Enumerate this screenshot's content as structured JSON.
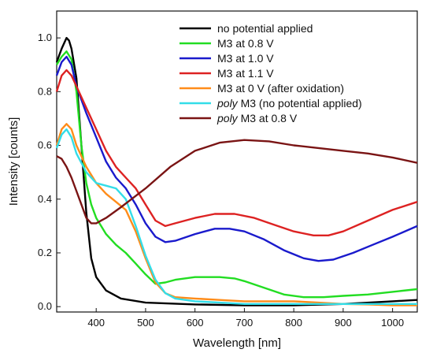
{
  "chart_data": {
    "type": "line",
    "xlabel": "Wavelength [nm]",
    "ylabel": "Intensity [counts]",
    "xlim": [
      320,
      1050
    ],
    "ylim": [
      -0.02,
      1.1
    ],
    "x_ticks": [
      400,
      500,
      600,
      700,
      800,
      900,
      1000
    ],
    "y_ticks": [
      0.0,
      0.2,
      0.4,
      0.6,
      0.8,
      1.0
    ],
    "grid": false,
    "legend_position": "top-right",
    "series": [
      {
        "name": "no potential applied",
        "color": "#000000",
        "points": [
          [
            320,
            0.91
          ],
          [
            330,
            0.96
          ],
          [
            340,
            1.0
          ],
          [
            345,
            0.99
          ],
          [
            350,
            0.96
          ],
          [
            360,
            0.85
          ],
          [
            370,
            0.6
          ],
          [
            380,
            0.35
          ],
          [
            390,
            0.18
          ],
          [
            400,
            0.11
          ],
          [
            420,
            0.06
          ],
          [
            450,
            0.03
          ],
          [
            500,
            0.015
          ],
          [
            600,
            0.008
          ],
          [
            700,
            0.005
          ],
          [
            800,
            0.005
          ],
          [
            900,
            0.01
          ],
          [
            1000,
            0.02
          ],
          [
            1050,
            0.025
          ]
        ]
      },
      {
        "name": "M3 at 0.8 V",
        "color": "#22dd22",
        "points": [
          [
            320,
            0.9
          ],
          [
            330,
            0.93
          ],
          [
            340,
            0.95
          ],
          [
            350,
            0.92
          ],
          [
            360,
            0.8
          ],
          [
            370,
            0.6
          ],
          [
            380,
            0.46
          ],
          [
            390,
            0.38
          ],
          [
            400,
            0.33
          ],
          [
            420,
            0.27
          ],
          [
            440,
            0.23
          ],
          [
            460,
            0.2
          ],
          [
            480,
            0.16
          ],
          [
            500,
            0.12
          ],
          [
            520,
            0.085
          ],
          [
            540,
            0.09
          ],
          [
            560,
            0.1
          ],
          [
            600,
            0.11
          ],
          [
            650,
            0.11
          ],
          [
            680,
            0.105
          ],
          [
            700,
            0.095
          ],
          [
            740,
            0.07
          ],
          [
            780,
            0.045
          ],
          [
            820,
            0.035
          ],
          [
            860,
            0.035
          ],
          [
            900,
            0.04
          ],
          [
            950,
            0.045
          ],
          [
            1000,
            0.055
          ],
          [
            1050,
            0.065
          ]
        ]
      },
      {
        "name": "M3 at 1.0 V",
        "color": "#1a1acc",
        "points": [
          [
            320,
            0.86
          ],
          [
            330,
            0.91
          ],
          [
            340,
            0.93
          ],
          [
            350,
            0.9
          ],
          [
            360,
            0.82
          ],
          [
            380,
            0.72
          ],
          [
            400,
            0.63
          ],
          [
            420,
            0.54
          ],
          [
            440,
            0.48
          ],
          [
            460,
            0.44
          ],
          [
            480,
            0.38
          ],
          [
            500,
            0.31
          ],
          [
            520,
            0.26
          ],
          [
            540,
            0.24
          ],
          [
            560,
            0.245
          ],
          [
            600,
            0.27
          ],
          [
            640,
            0.29
          ],
          [
            670,
            0.29
          ],
          [
            700,
            0.28
          ],
          [
            740,
            0.25
          ],
          [
            780,
            0.21
          ],
          [
            820,
            0.18
          ],
          [
            850,
            0.17
          ],
          [
            880,
            0.175
          ],
          [
            920,
            0.2
          ],
          [
            960,
            0.23
          ],
          [
            1000,
            0.26
          ],
          [
            1050,
            0.3
          ]
        ]
      },
      {
        "name": "M3 at 1.1 V",
        "color": "#dd2222",
        "points": [
          [
            320,
            0.8
          ],
          [
            330,
            0.86
          ],
          [
            340,
            0.88
          ],
          [
            350,
            0.86
          ],
          [
            360,
            0.82
          ],
          [
            380,
            0.74
          ],
          [
            400,
            0.66
          ],
          [
            420,
            0.58
          ],
          [
            440,
            0.52
          ],
          [
            460,
            0.48
          ],
          [
            480,
            0.44
          ],
          [
            500,
            0.38
          ],
          [
            520,
            0.32
          ],
          [
            540,
            0.3
          ],
          [
            560,
            0.31
          ],
          [
            600,
            0.33
          ],
          [
            640,
            0.345
          ],
          [
            680,
            0.345
          ],
          [
            720,
            0.33
          ],
          [
            760,
            0.305
          ],
          [
            800,
            0.28
          ],
          [
            840,
            0.265
          ],
          [
            870,
            0.265
          ],
          [
            900,
            0.28
          ],
          [
            950,
            0.32
          ],
          [
            1000,
            0.36
          ],
          [
            1050,
            0.39
          ]
        ]
      },
      {
        "name": "M3 at 0 V (after oxidation)",
        "color": "#ff8c1a",
        "points": [
          [
            320,
            0.6
          ],
          [
            330,
            0.66
          ],
          [
            340,
            0.68
          ],
          [
            350,
            0.66
          ],
          [
            360,
            0.6
          ],
          [
            380,
            0.52
          ],
          [
            400,
            0.46
          ],
          [
            420,
            0.42
          ],
          [
            440,
            0.39
          ],
          [
            460,
            0.36
          ],
          [
            480,
            0.28
          ],
          [
            500,
            0.18
          ],
          [
            520,
            0.09
          ],
          [
            540,
            0.05
          ],
          [
            560,
            0.035
          ],
          [
            600,
            0.03
          ],
          [
            650,
            0.025
          ],
          [
            700,
            0.02
          ],
          [
            750,
            0.02
          ],
          [
            800,
            0.02
          ],
          [
            850,
            0.015
          ],
          [
            900,
            0.01
          ],
          [
            950,
            0.008
          ],
          [
            1000,
            0.005
          ],
          [
            1050,
            0.005
          ]
        ]
      },
      {
        "name": "poly M3 (no potential applied)",
        "name_italic": "poly",
        "name_rest": " M3 (no potential applied)",
        "color": "#33dde8",
        "points": [
          [
            320,
            0.59
          ],
          [
            330,
            0.64
          ],
          [
            340,
            0.66
          ],
          [
            350,
            0.63
          ],
          [
            360,
            0.57
          ],
          [
            380,
            0.5
          ],
          [
            400,
            0.46
          ],
          [
            420,
            0.45
          ],
          [
            440,
            0.44
          ],
          [
            460,
            0.4
          ],
          [
            480,
            0.3
          ],
          [
            500,
            0.19
          ],
          [
            520,
            0.1
          ],
          [
            540,
            0.05
          ],
          [
            560,
            0.03
          ],
          [
            600,
            0.02
          ],
          [
            650,
            0.015
          ],
          [
            700,
            0.01
          ],
          [
            800,
            0.01
          ],
          [
            900,
            0.01
          ],
          [
            1000,
            0.01
          ],
          [
            1050,
            0.01
          ]
        ]
      },
      {
        "name": "poly M3 at 0.8 V",
        "name_italic": "poly",
        "name_rest": " M3 at 0.8 V",
        "color": "#7a1414",
        "points": [
          [
            320,
            0.56
          ],
          [
            330,
            0.55
          ],
          [
            340,
            0.52
          ],
          [
            350,
            0.48
          ],
          [
            360,
            0.43
          ],
          [
            370,
            0.38
          ],
          [
            380,
            0.33
          ],
          [
            390,
            0.31
          ],
          [
            400,
            0.31
          ],
          [
            420,
            0.33
          ],
          [
            450,
            0.37
          ],
          [
            500,
            0.44
          ],
          [
            550,
            0.52
          ],
          [
            600,
            0.58
          ],
          [
            650,
            0.61
          ],
          [
            700,
            0.62
          ],
          [
            750,
            0.615
          ],
          [
            800,
            0.6
          ],
          [
            850,
            0.59
          ],
          [
            900,
            0.58
          ],
          [
            950,
            0.57
          ],
          [
            1000,
            0.555
          ],
          [
            1050,
            0.535
          ]
        ]
      }
    ]
  }
}
